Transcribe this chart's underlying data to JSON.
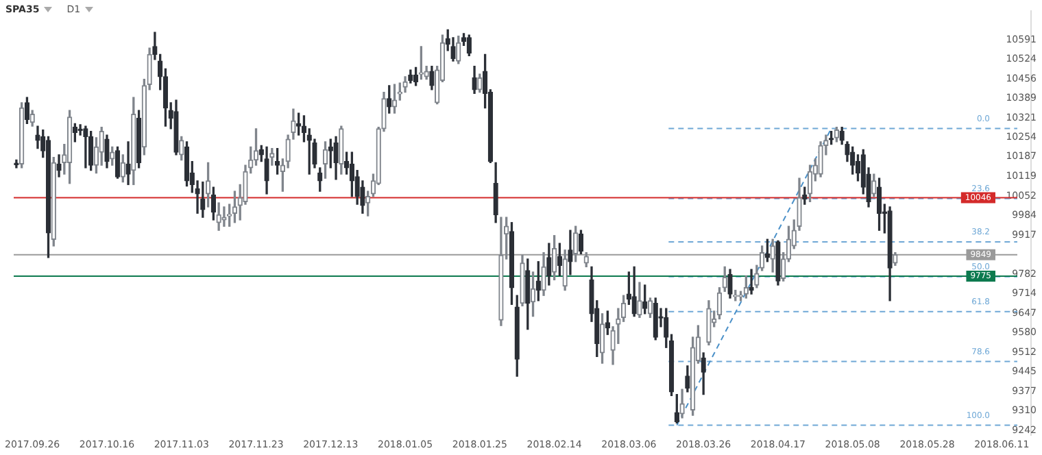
{
  "chart_data": {
    "type": "candlestick",
    "title": "SPA35",
    "subtitle": "D1",
    "categories": [
      null,
      null,
      null,
      "2017.09.26",
      null,
      null,
      null,
      null,
      null,
      null,
      null,
      null,
      null,
      null,
      null,
      null,
      null,
      "2017.10.16",
      null,
      null,
      null,
      null,
      null,
      null,
      null,
      null,
      null,
      null,
      null,
      null,
      null,
      "2017.11.03",
      null,
      null,
      null,
      null,
      null,
      null,
      null,
      null,
      null,
      null,
      null,
      null,
      null,
      "2017.11.23",
      null,
      null,
      null,
      null,
      null,
      null,
      null,
      null,
      null,
      null,
      null,
      null,
      null,
      "2017.12.13",
      null,
      null,
      null,
      null,
      null,
      null,
      null,
      null,
      null,
      null,
      null,
      null,
      null,
      "2018.01.05",
      null,
      null,
      null,
      null,
      null,
      null,
      null,
      null,
      null,
      null,
      null,
      null,
      null,
      "2018.01.25",
      null,
      null,
      null,
      null,
      null,
      null,
      null,
      null,
      null,
      null,
      null,
      null,
      null,
      "2018.02.14",
      null,
      null,
      null,
      null,
      null,
      null,
      null,
      null,
      null,
      null,
      null,
      null,
      null,
      "2018.03.06",
      null,
      null,
      null,
      null,
      null,
      null,
      null,
      null,
      null,
      null,
      null,
      null,
      null,
      "2018.03.26",
      null,
      null,
      null,
      null,
      null,
      null,
      null,
      null,
      null,
      null,
      null,
      null,
      null,
      "2018.04.17",
      null,
      null,
      null,
      null,
      null,
      null,
      null,
      null,
      null,
      null,
      null,
      null,
      null,
      "2018.05.08",
      null,
      null,
      null,
      null,
      null,
      null,
      null,
      null,
      null,
      null,
      null,
      null,
      null,
      "2018.05.28",
      null,
      null,
      null,
      null,
      null,
      null,
      null,
      null,
      null,
      null,
      null,
      null,
      null,
      "2018.06.11",
      null,
      null,
      null,
      null,
      null
    ],
    "colors": [
      "#2b2f36",
      "#80858c",
      "#2b2f36",
      "#80858c",
      "#2b2f36",
      "#2b2f36",
      "#2b2f36",
      "#80858c",
      "#2b2f36",
      "#80858c",
      "#80858c",
      "#2b2f36",
      "#2b2f36",
      "#2b2f36",
      "#2b2f36",
      "#80858c",
      "#80858c",
      "#2b2f36",
      "#80858c",
      "#2b2f36",
      "#80858c",
      "#2b2f36",
      "#80858c",
      "#2b2f36",
      "#80858c",
      "#80858c",
      "#2b2f36",
      "#2b2f36",
      "#2b2f36",
      "#2b2f36",
      "#2b2f36",
      "#80858c",
      "#2b2f36",
      "#2b2f36",
      "#2b2f36",
      "#2b2f36",
      "#80858c",
      "#2b2f36",
      "#80858c",
      "#80858c",
      "#80858c",
      "#80858c",
      "#80858c",
      "#80858c",
      "#80858c",
      "#80858c",
      "#2b2f36",
      "#2b2f36",
      "#80858c",
      "#2b2f36",
      "#80858c",
      "#80858c",
      "#80858c",
      "#2b2f36",
      "#2b2f36",
      "#2b2f36",
      "#2b2f36",
      "#2b2f36",
      "#80858c",
      "#2b2f36",
      "#2b2f36",
      "#80858c",
      "#2b2f36",
      "#2b2f36",
      "#2b2f36",
      "#2b2f36",
      "#80858c",
      "#80858c",
      "#80858c",
      "#80858c",
      "#2b2f36",
      "#80858c",
      "#80858c",
      "#80858c",
      "#2b2f36",
      "#2b2f36",
      "#80858c",
      "#80858c",
      "#2b2f36",
      "#80858c",
      "#80858c",
      "#2b2f36",
      "#2b2f36",
      "#80858c",
      "#2b2f36",
      "#2b2f36",
      "#2b2f36",
      "#80858c",
      "#2b2f36",
      "#2b2f36",
      "#2b2f36",
      "#80858c",
      "#80858c",
      "#2b2f36",
      "#2b2f36",
      "#80858c",
      "#2b2f36",
      "#80858c",
      "#2b2f36",
      "#80858c",
      "#2b2f36",
      "#80858c",
      "#2b2f36",
      "#80858c",
      "#2b2f36",
      "#80858c",
      "#2b2f36",
      "#80858c",
      "#2b2f36",
      "#2b2f36",
      "#80858c",
      "#2b2f36",
      "#80858c",
      "#80858c",
      "#80858c",
      "#2b2f36",
      "#2b2f36",
      "#80858c",
      "#2b2f36",
      "#80858c",
      "#2b2f36",
      "#2b2f36",
      "#2b2f36",
      "#2b2f36",
      "#2b2f36",
      "#80858c",
      "#2b2f36",
      "#80858c",
      "#80858c",
      "#2b2f36",
      "#80858c",
      "#80858c",
      "#80858c",
      "#80858c",
      "#2b2f36",
      "#80858c",
      "#80858c",
      "#80858c",
      "#2b2f36",
      "#80858c",
      "#80858c",
      "#2b2f36",
      "#80858c",
      "#2b2f36",
      "#80858c",
      "#80858c",
      "#80858c",
      "#80858c",
      "#2b2f36",
      "#80858c",
      "#80858c",
      "#80858c",
      "#80858c",
      "#2b2f36",
      "#80858c",
      "#2b2f36",
      "#2b2f36",
      "#2b2f36",
      "#2b2f36",
      "#2b2f36",
      "#2b2f36",
      "#80858c",
      "#2b2f36",
      "#2b2f36",
      "#2b2f36",
      "#80858c",
      null,
      null,
      null,
      null,
      null,
      null,
      null,
      null,
      null,
      null,
      null,
      null,
      null,
      null,
      null,
      null,
      null,
      null,
      null,
      null,
      null,
      null,
      null,
      null,
      null
    ],
    "ohlc": [
      [
        10162,
        10176,
        10149,
        10160
      ],
      [
        10162,
        10374,
        10149,
        10356
      ],
      [
        10374,
        10392,
        10302,
        10316
      ],
      [
        10306,
        10347,
        10293,
        10334
      ],
      [
        10262,
        10293,
        10216,
        10244
      ],
      [
        10257,
        10280,
        10185,
        10208
      ],
      [
        10244,
        10257,
        9839,
        9924
      ],
      [
        9902,
        10185,
        9879,
        10167
      ],
      [
        10162,
        10194,
        10118,
        10140
      ],
      [
        10167,
        10230,
        10127,
        10194
      ],
      [
        10167,
        10347,
        10095,
        10324
      ],
      [
        10289,
        10302,
        10239,
        10271
      ],
      [
        10280,
        10298,
        10262,
        10278
      ],
      [
        10284,
        10293,
        10149,
        10257
      ],
      [
        10257,
        10275,
        10140,
        10158
      ],
      [
        10158,
        10253,
        10131,
        10221
      ],
      [
        10203,
        10289,
        10158,
        10275
      ],
      [
        10248,
        10262,
        10149,
        10171
      ],
      [
        10180,
        10221,
        10158,
        10203
      ],
      [
        10208,
        10221,
        10113,
        10118
      ],
      [
        10118,
        10194,
        10100,
        10167
      ],
      [
        10162,
        10239,
        10091,
        10127
      ],
      [
        10140,
        10392,
        10091,
        10334
      ],
      [
        10320,
        10347,
        10149,
        10167
      ],
      [
        10221,
        10455,
        10194,
        10433
      ],
      [
        10437,
        10563,
        10419,
        10541
      ],
      [
        10568,
        10617,
        10523,
        10541
      ],
      [
        10518,
        10541,
        10419,
        10464
      ],
      [
        10464,
        10491,
        10293,
        10356
      ],
      [
        10347,
        10374,
        10284,
        10320
      ],
      [
        10343,
        10383,
        10194,
        10203
      ],
      [
        10194,
        10257,
        10176,
        10244
      ],
      [
        10221,
        10239,
        10086,
        10104
      ],
      [
        10131,
        10171,
        10064,
        10091
      ],
      [
        10077,
        10104,
        9992,
        10059
      ],
      [
        10041,
        10100,
        9978,
        10005
      ],
      [
        10059,
        10167,
        10014,
        10104
      ],
      [
        10055,
        10082,
        9969,
        9996
      ],
      [
        9960,
        10028,
        9933,
        9987
      ],
      [
        9969,
        10014,
        9947,
        9978
      ],
      [
        9983,
        10023,
        9947,
        9985
      ],
      [
        9992,
        10068,
        9960,
        10014
      ],
      [
        10019,
        10091,
        9969,
        10046
      ],
      [
        10032,
        10158,
        10023,
        10136
      ],
      [
        10149,
        10221,
        10131,
        10176
      ],
      [
        10176,
        10284,
        10158,
        10208
      ],
      [
        10212,
        10226,
        10171,
        10194
      ],
      [
        10180,
        10221,
        10059,
        10104
      ],
      [
        10185,
        10216,
        10158,
        10199
      ],
      [
        10171,
        10216,
        10127,
        10158
      ],
      [
        10136,
        10180,
        10068,
        10158
      ],
      [
        10171,
        10262,
        10149,
        10248
      ],
      [
        10271,
        10352,
        10248,
        10311
      ],
      [
        10302,
        10338,
        10262,
        10293
      ],
      [
        10293,
        10329,
        10239,
        10271
      ],
      [
        10262,
        10284,
        10127,
        10244
      ],
      [
        10235,
        10248,
        10149,
        10162
      ],
      [
        10131,
        10149,
        10068,
        10104
      ],
      [
        10162,
        10239,
        10113,
        10212
      ],
      [
        10221,
        10248,
        10149,
        10208
      ],
      [
        10235,
        10257,
        10109,
        10167
      ],
      [
        10162,
        10293,
        10127,
        10284
      ],
      [
        10171,
        10203,
        10127,
        10149
      ],
      [
        10162,
        10203,
        10050,
        10104
      ],
      [
        10118,
        10140,
        10023,
        10050
      ],
      [
        10082,
        10104,
        9992,
        10019
      ],
      [
        10028,
        10068,
        9983,
        10050
      ],
      [
        10059,
        10127,
        10050,
        10104
      ],
      [
        10095,
        10289,
        10091,
        10284
      ],
      [
        10284,
        10410,
        10275,
        10388
      ],
      [
        10388,
        10433,
        10338,
        10360
      ],
      [
        10360,
        10437,
        10338,
        10383
      ],
      [
        10405,
        10442,
        10383,
        10406
      ],
      [
        10428,
        10464,
        10410,
        10446
      ],
      [
        10469,
        10487,
        10442,
        10451
      ],
      [
        10469,
        10496,
        10433,
        10446
      ],
      [
        10473,
        10568,
        10455,
        10475
      ],
      [
        10464,
        10500,
        10455,
        10482
      ],
      [
        10482,
        10500,
        10419,
        10433
      ],
      [
        10374,
        10500,
        10370,
        10487
      ],
      [
        10451,
        10608,
        10446,
        10581
      ],
      [
        10595,
        10626,
        10554,
        10576
      ],
      [
        10568,
        10599,
        10518,
        10527
      ],
      [
        10518,
        10604,
        10509,
        10581
      ],
      [
        10599,
        10613,
        10572,
        10586
      ],
      [
        10599,
        10608,
        10536,
        10545
      ],
      [
        10460,
        10500,
        10406,
        10419
      ],
      [
        10419,
        10473,
        10410,
        10460
      ],
      [
        10482,
        10541,
        10356,
        10406
      ],
      [
        10410,
        10419,
        10167,
        10171
      ],
      [
        10095,
        10167,
        9960,
        9987
      ],
      [
        9623,
        9978,
        9604,
        9847
      ],
      [
        9920,
        9978,
        9834,
        9947
      ],
      [
        9929,
        9960,
        9677,
        9735
      ],
      [
        9668,
        9708,
        9429,
        9488
      ],
      [
        9681,
        9847,
        9672,
        9820
      ],
      [
        9794,
        9834,
        9591,
        9681
      ],
      [
        9686,
        9789,
        9636,
        9731
      ],
      [
        9758,
        9825,
        9690,
        9726
      ],
      [
        9726,
        9856,
        9708,
        9807
      ],
      [
        9839,
        9888,
        9744,
        9776
      ],
      [
        9789,
        9915,
        9762,
        9870
      ],
      [
        9843,
        9888,
        9776,
        9812
      ],
      [
        9740,
        9865,
        9726,
        9834
      ],
      [
        9865,
        9933,
        9780,
        9825
      ],
      [
        9852,
        9947,
        9825,
        9924
      ],
      [
        9920,
        9933,
        9852,
        9861
      ],
      [
        9820,
        9856,
        9807,
        9843
      ],
      [
        9762,
        9807,
        9618,
        9645
      ],
      [
        9663,
        9690,
        9497,
        9542
      ],
      [
        9510,
        9645,
        9474,
        9609
      ],
      [
        9614,
        9654,
        9573,
        9596
      ],
      [
        9519,
        9600,
        9470,
        9587
      ],
      [
        9609,
        9663,
        9542,
        9627
      ],
      [
        9632,
        9708,
        9618,
        9681
      ],
      [
        9713,
        9789,
        9677,
        9695
      ],
      [
        9704,
        9807,
        9636,
        9645
      ],
      [
        9641,
        9753,
        9632,
        9690
      ],
      [
        9686,
        9744,
        9645,
        9663
      ],
      [
        9645,
        9699,
        9632,
        9690
      ],
      [
        9681,
        9699,
        9555,
        9564
      ],
      [
        9632,
        9663,
        9600,
        9630
      ],
      [
        9632,
        9663,
        9528,
        9564
      ],
      [
        9551,
        9573,
        9362,
        9375
      ],
      [
        9303,
        9366,
        9267,
        9272
      ],
      [
        9299,
        9384,
        9285,
        9334
      ],
      [
        9429,
        9465,
        9375,
        9388
      ],
      [
        9312,
        9564,
        9294,
        9528
      ],
      [
        9483,
        9604,
        9474,
        9564
      ],
      [
        9492,
        9510,
        9366,
        9443
      ],
      [
        9546,
        9690,
        9537,
        9663
      ],
      [
        9614,
        9654,
        9600,
        9627
      ],
      [
        9641,
        9735,
        9627,
        9717
      ],
      [
        9735,
        9807,
        9722,
        9771
      ],
      [
        9780,
        9798,
        9699,
        9713
      ],
      [
        9704,
        9726,
        9690,
        9708
      ],
      [
        9704,
        9722,
        9690,
        9706
      ],
      [
        9713,
        9776,
        9699,
        9735
      ],
      [
        9735,
        9798,
        9713,
        9726
      ],
      [
        9744,
        9812,
        9735,
        9784
      ],
      [
        9803,
        9879,
        9794,
        9856
      ],
      [
        9852,
        9902,
        9825,
        9839
      ],
      [
        9834,
        9902,
        9789,
        9879
      ],
      [
        9893,
        9897,
        9744,
        9758
      ],
      [
        9767,
        9856,
        9758,
        9834
      ],
      [
        9834,
        9947,
        9825,
        9902
      ],
      [
        9879,
        9969,
        9870,
        9933
      ],
      [
        9947,
        10113,
        9933,
        10046
      ],
      [
        10055,
        10082,
        10023,
        10041
      ],
      [
        10059,
        10158,
        10032,
        10136
      ],
      [
        10127,
        10180,
        10104,
        10158
      ],
      [
        10127,
        10239,
        10118,
        10226
      ],
      [
        10226,
        10262,
        10194,
        10244
      ],
      [
        10248,
        10275,
        10230,
        10246
      ],
      [
        10253,
        10289,
        10239,
        10280
      ],
      [
        10275,
        10289,
        10230,
        10244
      ],
      [
        10230,
        10239,
        10171,
        10194
      ],
      [
        10203,
        10221,
        10127,
        10158
      ],
      [
        10171,
        10194,
        10104,
        10131
      ],
      [
        10194,
        10212,
        10059,
        10082
      ],
      [
        10127,
        10149,
        10014,
        10032
      ],
      [
        10059,
        10127,
        10050,
        10104
      ],
      [
        10082,
        10113,
        9933,
        9992
      ],
      [
        9996,
        10023,
        9924,
        9992
      ],
      [
        10000,
        10014,
        9690,
        9803
      ],
      [
        9820,
        9856,
        9812,
        9849
      ],
      null,
      null,
      null,
      null,
      null,
      null,
      null,
      null,
      null,
      null,
      null,
      null,
      null,
      null,
      null,
      null,
      null,
      null,
      null,
      null,
      null,
      null,
      null,
      null,
      null
    ],
    "series": [
      {
        "type": "line",
        "color": "#4a90c8",
        "line_style": "dashed",
        "values": [
          null,
          null,
          null,
          null,
          null,
          null,
          null,
          null,
          null,
          null,
          null,
          null,
          null,
          null,
          null,
          null,
          null,
          null,
          null,
          null,
          null,
          null,
          null,
          null,
          null,
          null,
          null,
          null,
          null,
          null,
          null,
          null,
          null,
          null,
          null,
          null,
          null,
          null,
          null,
          null,
          null,
          null,
          null,
          null,
          null,
          null,
          null,
          null,
          null,
          null,
          null,
          null,
          null,
          null,
          null,
          null,
          null,
          null,
          null,
          null,
          null,
          null,
          null,
          null,
          null,
          null,
          null,
          null,
          null,
          null,
          null,
          null,
          null,
          null,
          null,
          null,
          null,
          null,
          null,
          null,
          null,
          null,
          null,
          null,
          null,
          null,
          null,
          null,
          null,
          null,
          null,
          null,
          null,
          null,
          null,
          null,
          null,
          null,
          null,
          null,
          null,
          null,
          null,
          null,
          null,
          null,
          null,
          null,
          null,
          null,
          null,
          null,
          null,
          null,
          null,
          null,
          null,
          null,
          null,
          null,
          null,
          null,
          null,
          null,
          9260,
          null,
          null,
          null,
          null,
          null,
          null,
          null,
          null,
          null,
          null,
          null,
          null,
          null,
          null,
          null,
          null,
          null,
          null,
          null,
          null,
          null,
          null,
          null,
          null,
          null,
          null,
          null,
          null,
          10285,
          null,
          null,
          null,
          null,
          null,
          null,
          null,
          null,
          null,
          null,
          null,
          null,
          null,
          null,
          null,
          null,
          null,
          null,
          null,
          null,
          null,
          null,
          null,
          null,
          null,
          null,
          null,
          null,
          null,
          null,
          null,
          null,
          null,
          null,
          null,
          null,
          null
        ]
      }
    ],
    "ref_lines": [
      {
        "axis": "y",
        "value": 10285,
        "color": "#6fa8d6",
        "line_style": "dashed"
      },
      {
        "axis": "y",
        "value": 10043,
        "color": "#6fa8d6",
        "line_style": "dashed"
      },
      {
        "axis": "y",
        "value": 9893,
        "color": "#6fa8d6",
        "line_style": "dashed"
      },
      {
        "axis": "y",
        "value": 9773,
        "color": "#6fa8d6",
        "line_style": "dashed"
      },
      {
        "axis": "y",
        "value": 9652,
        "color": "#6fa8d6",
        "line_style": "dashed"
      },
      {
        "axis": "y",
        "value": 9480,
        "color": "#6fa8d6",
        "line_style": "dashed"
      },
      {
        "axis": "y",
        "value": 9260,
        "color": "#6fa8d6",
        "line_style": "dashed"
      },
      {
        "axis": "y",
        "value": 10046,
        "label": "10046",
        "color": "#d42a2a",
        "line_style": "solid"
      },
      {
        "axis": "y",
        "value": 9775,
        "label": "9775",
        "color": "#0d7a4f",
        "line_style": "solid"
      },
      {
        "axis": "y",
        "value": 9849,
        "label": "9849",
        "color": "#9a9a9a",
        "line_style": "solid"
      }
    ],
    "annotations": [
      {
        "text": "0.0",
        "y": 10285
      },
      {
        "text": "23.6",
        "y": 10043
      },
      {
        "text": "38.2",
        "y": 9893
      },
      {
        "text": "50.0",
        "y": 9773
      },
      {
        "text": "61.8",
        "y": 9652
      },
      {
        "text": "78.6",
        "y": 9480
      },
      {
        "text": "100.0",
        "y": 9260
      }
    ],
    "ylim": [
      9225,
      10690
    ],
    "yticks": [
      9242,
      9310,
      9377,
      9445,
      9512,
      9580,
      9647,
      9714,
      9782,
      9917,
      9984,
      10052,
      10119,
      10187,
      10254,
      10321,
      10389,
      10456,
      10524,
      10591
    ],
    "grid": false,
    "legend": false
  }
}
